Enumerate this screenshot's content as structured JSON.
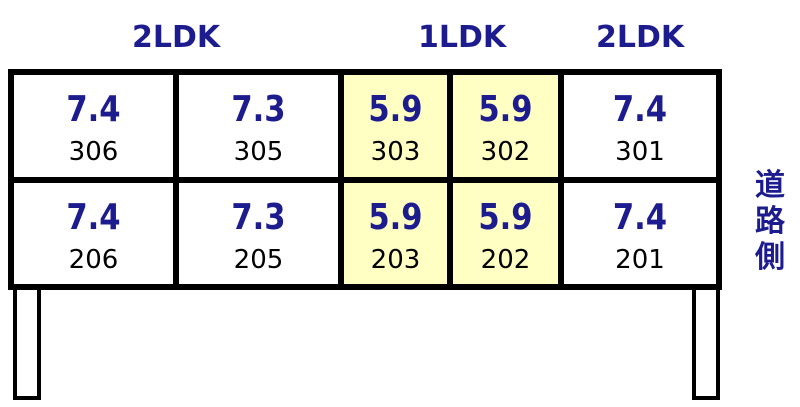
{
  "labels": [
    "2LDK",
    "1LDK",
    "2LDK"
  ],
  "road": "道路側",
  "colors": {
    "text": "#1c1c8f",
    "highlight": "#ffffc4"
  },
  "rows": [
    [
      {
        "size": "7.4",
        "room": "306"
      },
      {
        "size": "7.3",
        "room": "305"
      },
      {
        "size": "5.9",
        "room": "303"
      },
      {
        "size": "5.9",
        "room": "302"
      },
      {
        "size": "7.4",
        "room": "301"
      }
    ],
    [
      {
        "size": "7.4",
        "room": "206"
      },
      {
        "size": "7.3",
        "room": "205"
      },
      {
        "size": "5.9",
        "room": "203"
      },
      {
        "size": "5.9",
        "room": "202"
      },
      {
        "size": "7.4",
        "room": "201"
      }
    ]
  ]
}
